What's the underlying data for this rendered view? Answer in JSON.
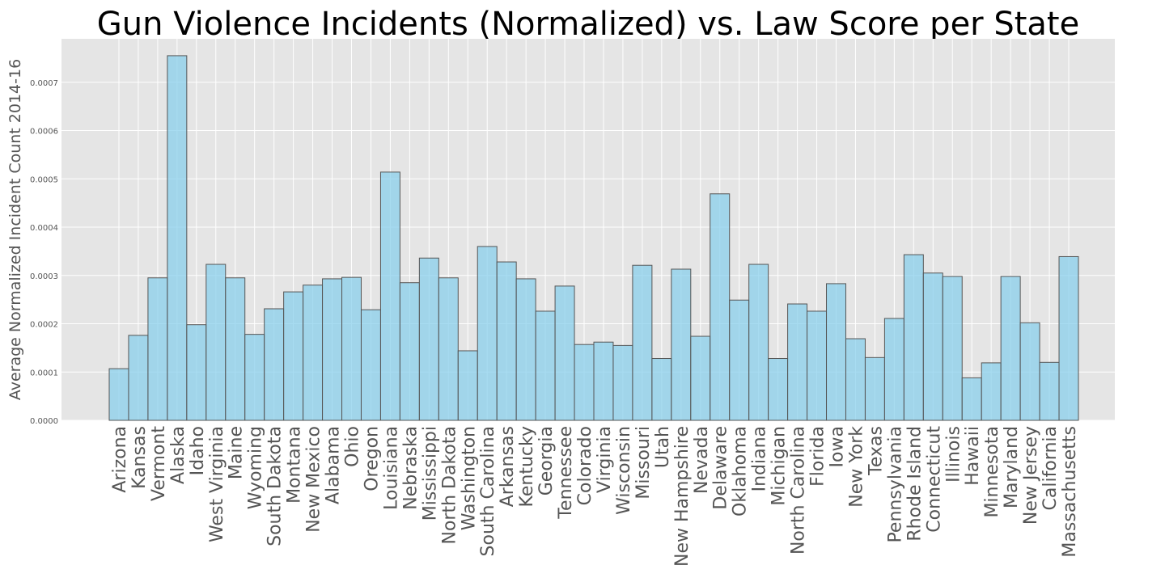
{
  "chart_data": {
    "type": "bar",
    "title": "Gun Violence Incidents (Normalized) vs. Law Score per State",
    "xlabel": "",
    "ylabel": "Average Normalized Incident Count 2014-16",
    "ylim": [
      0,
      0.00079
    ],
    "yticks": [
      0,
      0.0001,
      0.0002,
      0.0003,
      0.0004,
      0.0005,
      0.0006,
      0.0007
    ],
    "ytick_labels": [
      "0.0000",
      "0.0001",
      "0.0002",
      "0.0003",
      "0.0004",
      "0.0005",
      "0.0006",
      "0.0007"
    ],
    "grid": true,
    "categories": [
      "Arizona",
      "Kansas",
      "Vermont",
      "Alaska",
      "Idaho",
      "West Virginia",
      "Maine",
      "Wyoming",
      "South Dakota",
      "Montana",
      "New Mexico",
      "Alabama",
      "Ohio",
      "Oregon",
      "Louisiana",
      "Nebraska",
      "Mississippi",
      "North Dakota",
      "Washington",
      "South Carolina",
      "Arkansas",
      "Kentucky",
      "Georgia",
      "Tennessee",
      "Colorado",
      "Virginia",
      "Wisconsin",
      "Missouri",
      "Utah",
      "New Hampshire",
      "Nevada",
      "Delaware",
      "Oklahoma",
      "Indiana",
      "Michigan",
      "North Carolina",
      "Florida",
      "Iowa",
      "New York",
      "Texas",
      "Pennsylvania",
      "Rhode Island",
      "Connecticut",
      "Illinois",
      "Hawaii",
      "Minnesota",
      "Maryland",
      "New Jersey",
      "California",
      "Massachusetts"
    ],
    "values": [
      0.000107,
      0.000176,
      0.000295,
      0.000755,
      0.000198,
      0.000323,
      0.000295,
      0.000178,
      0.000231,
      0.000266,
      0.00028,
      0.000293,
      0.000296,
      0.000229,
      0.000514,
      0.000285,
      0.000336,
      0.000295,
      0.000144,
      0.00036,
      0.000328,
      0.000293,
      0.000226,
      0.000278,
      0.000157,
      0.000162,
      0.000155,
      0.000321,
      0.000128,
      0.000313,
      0.000174,
      0.000469,
      0.000249,
      0.000323,
      0.000128,
      0.000241,
      0.000226,
      0.000283,
      0.000169,
      0.00013,
      0.000211,
      0.000343,
      0.000305,
      0.000298,
      8.8e-05,
      0.000119,
      0.000298,
      0.000202,
      0.00012,
      0.000339
    ],
    "colors": {
      "bar_fill": "#87ceeb",
      "bar_edge": "#555555",
      "plot_background": "#e5e5e5",
      "grid": "#ffffff",
      "text": "#555555",
      "title": "#000000"
    }
  }
}
